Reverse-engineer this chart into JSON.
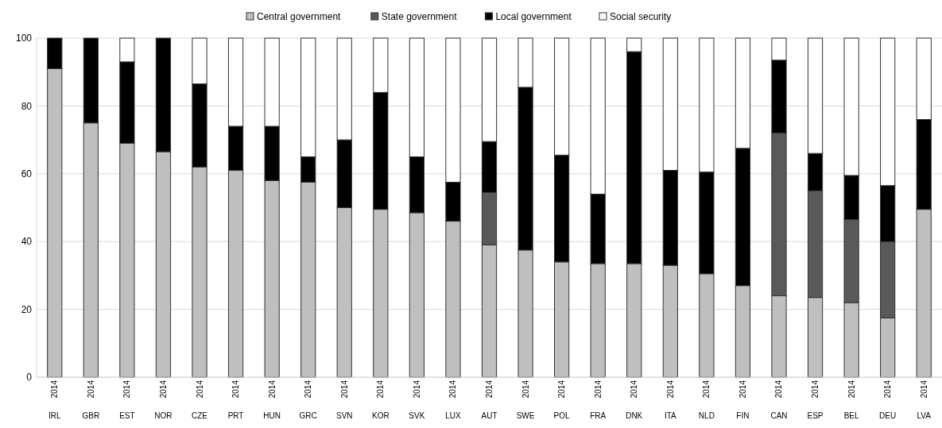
{
  "chart_data": {
    "type": "bar",
    "stacked": true,
    "legend": "top",
    "grid": "y",
    "categories": [
      "2014\nIRL",
      "2014\nGBR",
      "2014\nEST",
      "2014\nNOR",
      "2014\nCZE",
      "2014\nPRT",
      "2014\nHUN",
      "2014\nGRC",
      "2014\nSVN",
      "2014\nKOR",
      "2014\nSVK",
      "2014\nLUX",
      "2014\nAUT",
      "2014\nSWE",
      "2014\nPOL",
      "2014\nFRA",
      "2014\nDNK",
      "2014\nITA",
      "2014\nNLD",
      "2014\nFIN",
      "2014\nCAN",
      "2014\nESP",
      "2014\nBEL",
      "2014\nDEU",
      "2014\nLVA"
    ],
    "series": [
      {
        "name": "Central government",
        "color": "#bfbfbf",
        "values": [
          91,
          75,
          69,
          66.5,
          62,
          61,
          58,
          57.5,
          50,
          49.5,
          48.5,
          46,
          39,
          37.5,
          34,
          33.5,
          33.5,
          33,
          30.5,
          27,
          24,
          23.5,
          22,
          17.5,
          49.5
        ]
      },
      {
        "name": "State government",
        "color": "#595959",
        "values": [
          0,
          0,
          0,
          0,
          0,
          0,
          0,
          0,
          0,
          0,
          0,
          0,
          15.5,
          0,
          0,
          0,
          0,
          0,
          0,
          0,
          48,
          31.5,
          24.5,
          22.5,
          0
        ]
      },
      {
        "name": "Local government",
        "color": "#000000",
        "values": [
          9,
          25,
          24,
          33.5,
          24.5,
          13,
          16,
          7.5,
          20,
          34.5,
          16.5,
          11.5,
          15,
          48,
          31.5,
          20.5,
          62.5,
          28,
          30,
          40.5,
          21.5,
          11,
          13,
          16.5,
          26.5
        ]
      },
      {
        "name": "Social security",
        "color": "#ffffff",
        "values": [
          0,
          0,
          7,
          0,
          13.5,
          26,
          26,
          35,
          30,
          16,
          35,
          42.5,
          30.5,
          14.5,
          34.5,
          46,
          4,
          39,
          39.5,
          32.5,
          6.5,
          34,
          40.5,
          43.5,
          24
        ]
      }
    ],
    "ylim": [
      0,
      100
    ],
    "yticks": [
      0,
      20,
      40,
      60,
      80,
      100
    ]
  }
}
